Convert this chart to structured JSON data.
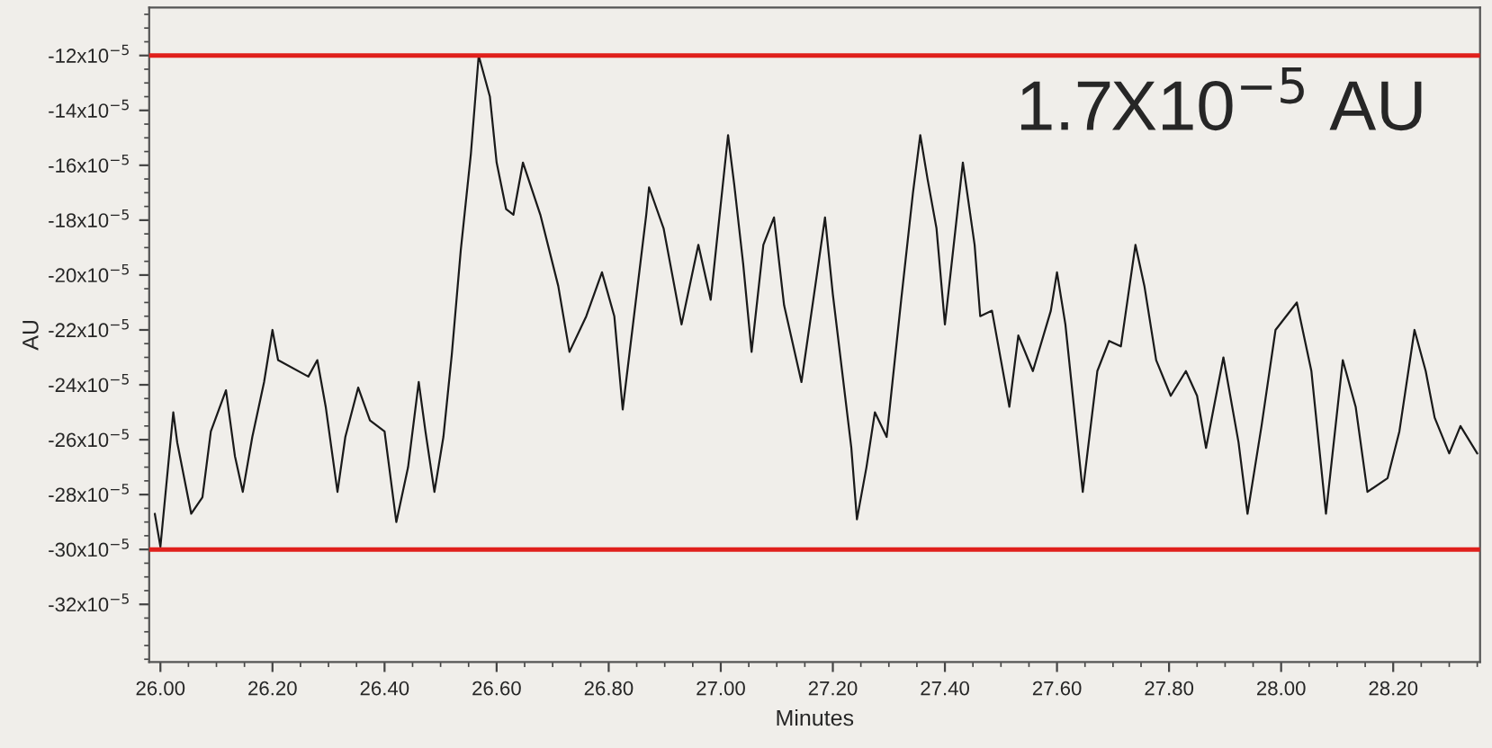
{
  "chart_data": {
    "type": "line",
    "xlabel": "Minutes",
    "ylabel": "AU",
    "annotations": [
      "1.7X10$^{−5}$ AU"
    ],
    "xlim": [
      25.98,
      28.355
    ],
    "xticks": [
      {
        "value": 26.0,
        "label": "26.00"
      },
      {
        "value": 26.2,
        "label": "26.20"
      },
      {
        "value": 26.4,
        "label": "26.40"
      },
      {
        "value": 26.6,
        "label": "26.60"
      },
      {
        "value": 26.8,
        "label": "26.80"
      },
      {
        "value": 27.0,
        "label": "27.00"
      },
      {
        "value": 27.2,
        "label": "27.20"
      },
      {
        "value": 27.4,
        "label": "27.40"
      },
      {
        "value": 27.6,
        "label": "27.60"
      },
      {
        "value": 27.8,
        "label": "27.80"
      },
      {
        "value": 28.0,
        "label": "28.00"
      },
      {
        "value": 28.2,
        "label": "28.20"
      }
    ],
    "ylim": [
      -0.000341,
      -0.0001025
    ],
    "yticks": [
      {
        "value": -0.00012,
        "label": "-12x10$^{−5}$"
      },
      {
        "value": -0.00014,
        "label": "-14x10$^{−5}$"
      },
      {
        "value": -0.00016,
        "label": "-16x10$^{−5}$"
      },
      {
        "value": -0.00018,
        "label": "-18x10$^{−5}$"
      },
      {
        "value": -0.0002,
        "label": "-20x10$^{−5}$"
      },
      {
        "value": -0.00022,
        "label": "-22x10$^{−5}$"
      },
      {
        "value": -0.00024,
        "label": "-24x10$^{−5}$"
      },
      {
        "value": -0.00026,
        "label": "-26x10$^{−5}$"
      },
      {
        "value": -0.00028,
        "label": "-28x10$^{−5}$"
      },
      {
        "value": -0.0003,
        "label": "-30x10$^{−5}$"
      },
      {
        "value": -0.00032,
        "label": "-32x10$^{−5}$"
      }
    ],
    "grid": false,
    "legend": false,
    "marker": "none",
    "line_style": "solid",
    "ref_lines": [
      {
        "axis": "y",
        "value": -0.00012,
        "color": "#e0201c"
      },
      {
        "axis": "y",
        "value": -0.0003,
        "color": "#e0201c"
      }
    ],
    "series": [
      {
        "color": "#1a1a1a",
        "x": [
          25.99,
          26.0,
          26.023,
          26.03,
          26.055,
          26.075,
          26.09,
          26.117,
          26.133,
          26.147,
          26.164,
          26.185,
          26.2,
          26.21,
          26.264,
          26.28,
          26.295,
          26.316,
          26.33,
          26.353,
          26.374,
          26.4,
          26.421,
          26.442,
          26.461,
          26.473,
          26.489,
          26.505,
          26.52,
          26.536,
          26.554,
          26.568,
          26.588,
          26.6,
          26.617,
          26.63,
          26.647,
          26.678,
          26.71,
          26.73,
          26.76,
          26.788,
          26.81,
          26.825,
          26.867,
          26.872,
          26.898,
          26.93,
          26.96,
          26.982,
          27.013,
          27.024,
          27.04,
          27.055,
          27.076,
          27.095,
          27.113,
          27.144,
          27.17,
          27.186,
          27.2,
          27.233,
          27.243,
          27.26,
          27.275,
          27.296,
          27.322,
          27.343,
          27.356,
          27.369,
          27.385,
          27.4,
          27.432,
          27.453,
          27.463,
          27.484,
          27.515,
          27.531,
          27.557,
          27.589,
          27.6,
          27.615,
          27.646,
          27.672,
          27.693,
          27.714,
          27.74,
          27.756,
          27.777,
          27.803,
          27.83,
          27.85,
          27.866,
          27.897,
          27.924,
          27.94,
          27.965,
          27.99,
          28.028,
          28.054,
          28.08,
          28.11,
          28.133,
          28.154,
          28.19,
          28.211,
          28.238,
          28.258,
          28.274,
          28.3,
          28.32,
          28.35
        ],
        "values": [
          -0.000287,
          -0.000299,
          -0.00025,
          -0.000261,
          -0.000287,
          -0.000281,
          -0.000257,
          -0.000242,
          -0.000266,
          -0.000279,
          -0.000259,
          -0.000239,
          -0.00022,
          -0.000231,
          -0.000237,
          -0.000231,
          -0.000248,
          -0.000279,
          -0.000259,
          -0.000241,
          -0.000253,
          -0.000257,
          -0.00029,
          -0.00027,
          -0.000239,
          -0.000257,
          -0.000279,
          -0.000259,
          -0.000229,
          -0.000191,
          -0.000156,
          -0.00012,
          -0.000135,
          -0.000159,
          -0.000176,
          -0.000178,
          -0.000159,
          -0.000178,
          -0.000204,
          -0.000228,
          -0.000215,
          -0.000199,
          -0.000215,
          -0.000249,
          -0.000178,
          -0.000168,
          -0.000183,
          -0.000218,
          -0.000189,
          -0.000209,
          -0.000149,
          -0.000167,
          -0.000196,
          -0.000228,
          -0.000189,
          -0.000179,
          -0.000211,
          -0.000239,
          -0.000202,
          -0.000179,
          -0.000207,
          -0.000263,
          -0.000289,
          -0.00027,
          -0.00025,
          -0.000259,
          -0.000209,
          -0.00017,
          -0.000149,
          -0.000165,
          -0.000183,
          -0.000218,
          -0.000159,
          -0.000189,
          -0.000215,
          -0.000213,
          -0.000248,
          -0.000222,
          -0.000235,
          -0.000213,
          -0.000199,
          -0.000218,
          -0.000279,
          -0.000235,
          -0.000224,
          -0.000226,
          -0.000189,
          -0.000204,
          -0.000231,
          -0.000244,
          -0.000235,
          -0.000244,
          -0.000263,
          -0.00023,
          -0.000261,
          -0.000287,
          -0.000255,
          -0.00022,
          -0.00021,
          -0.000235,
          -0.000287,
          -0.000231,
          -0.000248,
          -0.000279,
          -0.000274,
          -0.000257,
          -0.00022,
          -0.000235,
          -0.000252,
          -0.000265,
          -0.000255,
          -0.000265
        ]
      }
    ]
  }
}
